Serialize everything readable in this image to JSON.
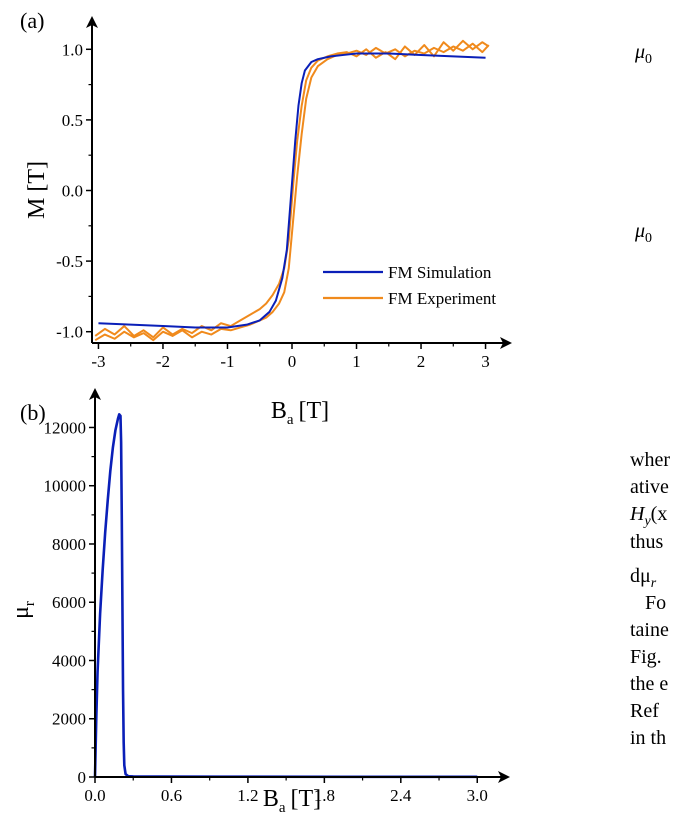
{
  "chart_data": [
    {
      "id": "a",
      "type": "line",
      "panel_label": "(a)",
      "xlabel": "B",
      "xlabel_sub": "a",
      "xlabel_unit": "[T]",
      "ylabel": "M [T]",
      "xlim": [
        -3.1,
        3.1
      ],
      "ylim": [
        -1.08,
        1.08
      ],
      "xticks": [
        -3,
        -2,
        -1,
        0,
        1,
        2,
        3
      ],
      "yticks": [
        -1.0,
        -0.5,
        0.0,
        0.5,
        1.0
      ],
      "ytick_labels": [
        "-1.0",
        "-0.5",
        "0.0",
        "0.5",
        "1.0"
      ],
      "legend_placement": "bottom-right",
      "series": [
        {
          "name": "FM Simulation",
          "color": "#0a1fb8",
          "x": [
            -3.0,
            -2.5,
            -2.0,
            -1.5,
            -1.0,
            -0.7,
            -0.5,
            -0.35,
            -0.25,
            -0.15,
            -0.08,
            0.0,
            0.05,
            0.1,
            0.15,
            0.2,
            0.3,
            0.4,
            0.6,
            0.8,
            1.0,
            1.5,
            2.0,
            2.5,
            3.0
          ],
          "y": [
            -0.94,
            -0.95,
            -0.96,
            -0.97,
            -0.97,
            -0.95,
            -0.92,
            -0.86,
            -0.78,
            -0.62,
            -0.42,
            0.05,
            0.35,
            0.6,
            0.76,
            0.85,
            0.91,
            0.93,
            0.95,
            0.96,
            0.97,
            0.97,
            0.96,
            0.95,
            0.94
          ]
        },
        {
          "name": "FM Experiment",
          "color": "#f08a1c",
          "x": [
            -3.05,
            -2.9,
            -2.75,
            -2.6,
            -2.45,
            -2.3,
            -2.15,
            -2.0,
            -1.85,
            -1.7,
            -1.55,
            -1.4,
            -1.25,
            -1.1,
            -0.95,
            -0.8,
            -0.65,
            -0.5,
            -0.4,
            -0.3,
            -0.2,
            -0.12,
            -0.05,
            0.02,
            0.08,
            0.15,
            0.22,
            0.3,
            0.4,
            0.55,
            0.7,
            0.85,
            1.0,
            1.15,
            1.3,
            1.45,
            1.6,
            1.75,
            1.9,
            2.05,
            2.2,
            2.35,
            2.5,
            2.65,
            2.8,
            2.95,
            3.05
          ],
          "y": [
            -1.03,
            -0.98,
            -1.02,
            -0.96,
            -1.03,
            -0.99,
            -1.04,
            -0.97,
            -1.02,
            -0.98,
            -1.01,
            -0.96,
            -0.99,
            -0.94,
            -0.96,
            -0.92,
            -0.88,
            -0.84,
            -0.8,
            -0.74,
            -0.66,
            -0.55,
            -0.35,
            0.05,
            0.35,
            0.6,
            0.78,
            0.87,
            0.92,
            0.95,
            0.97,
            0.98,
            0.95,
            1.0,
            0.94,
            0.98,
            0.93,
            1.02,
            0.96,
            1.03,
            0.95,
            1.05,
            0.99,
            1.06,
            1.0,
            1.05,
            1.02
          ]
        },
        {
          "name": "",
          "color": "#f08a1c",
          "x": [
            -3.05,
            -2.9,
            -2.75,
            -2.6,
            -2.45,
            -2.3,
            -2.15,
            -2.0,
            -1.85,
            -1.7,
            -1.55,
            -1.4,
            -1.25,
            -1.1,
            -0.95,
            -0.8,
            -0.65,
            -0.5,
            -0.4,
            -0.3,
            -0.2,
            -0.12,
            -0.05,
            0.02,
            0.08,
            0.15,
            0.22,
            0.3,
            0.4,
            0.55,
            0.7,
            0.85,
            1.0,
            1.15,
            1.3,
            1.45,
            1.6,
            1.75,
            1.9,
            2.05,
            2.2,
            2.35,
            2.5,
            2.65,
            2.8,
            2.95,
            3.05
          ],
          "y": [
            -1.06,
            -1.02,
            -1.05,
            -1.0,
            -1.04,
            -1.01,
            -1.06,
            -1.0,
            -1.03,
            -0.99,
            -1.04,
            -1.0,
            -1.02,
            -0.98,
            -0.99,
            -0.97,
            -0.95,
            -0.92,
            -0.9,
            -0.86,
            -0.8,
            -0.72,
            -0.55,
            -0.2,
            0.1,
            0.4,
            0.65,
            0.8,
            0.88,
            0.93,
            0.96,
            0.97,
            0.99,
            0.96,
            1.01,
            0.97,
            1.0,
            0.95,
            0.99,
            0.97,
            1.01,
            0.98,
            1.02,
            0.99,
            1.04,
            0.98,
            1.03
          ]
        }
      ]
    },
    {
      "id": "b",
      "type": "line",
      "panel_label": "(b)",
      "xlabel": "B",
      "xlabel_sub": "a",
      "xlabel_unit": "[T]",
      "ylabel": "μ",
      "ylabel_sub": "r",
      "xlim": [
        0.0,
        3.1
      ],
      "ylim": [
        0,
        12600
      ],
      "xticks": [
        0.0,
        0.6,
        1.2,
        1.8,
        2.4,
        3.0
      ],
      "xtick_labels": [
        "0.0",
        "0.6",
        "1.2",
        "1.8",
        "2.4",
        "3.0"
      ],
      "yticks": [
        0,
        2000,
        4000,
        6000,
        8000,
        10000,
        12000
      ],
      "series": [
        {
          "name": "",
          "color": "#0a1fb8",
          "x": [
            0.0,
            0.01,
            0.02,
            0.04,
            0.06,
            0.08,
            0.1,
            0.12,
            0.14,
            0.16,
            0.18,
            0.19,
            0.2,
            0.205,
            0.21,
            0.215,
            0.22,
            0.225,
            0.23,
            0.24,
            0.26,
            0.3,
            0.5,
            1.0,
            2.0,
            3.0
          ],
          "y": [
            0,
            2000,
            3600,
            5600,
            7100,
            8400,
            9500,
            10500,
            11300,
            11900,
            12300,
            12450,
            12400,
            11500,
            9000,
            6000,
            3000,
            1200,
            400,
            100,
            30,
            20,
            15,
            10,
            8,
            5
          ]
        }
      ]
    }
  ],
  "side_text": {
    "mu0_top": "μ",
    "mu0_top_sub": "0",
    "mu0_bottom": "μ",
    "mu0_bottom_sub": "0",
    "line_1": "wher",
    "line_2": "ative",
    "line_3": "H",
    "line_3_sub": "y",
    "line_3_tail": "(x",
    "line_4": "thus",
    "line_5": "dμ",
    "line_5_sub": "r",
    "line_6": "Fo",
    "line_7": "taine",
    "line_8": "Fig.",
    "line_9": "the e",
    "line_10": "Ref",
    "line_11": "in th"
  }
}
